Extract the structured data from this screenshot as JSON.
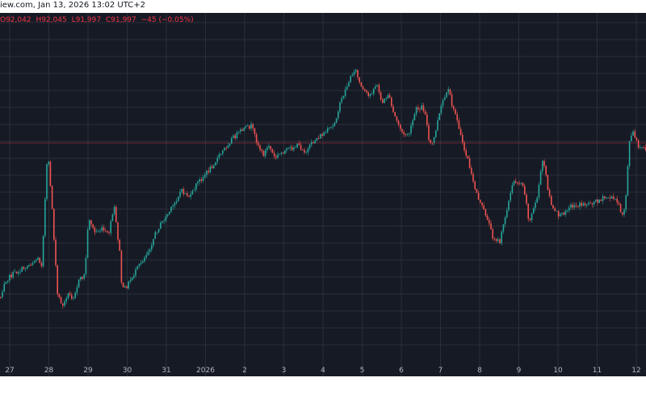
{
  "header": {
    "source_date": "iew.com,  Jan 13, 2026 13:02 UTC+2"
  },
  "ohlc": {
    "open": "O92,042",
    "high": "H92,045",
    "low": "L91,997",
    "close": "C91,997",
    "change": "−45 (−0.05%)"
  },
  "colors": {
    "background": "#161a25",
    "grid": "#2a2e39",
    "up": "#26a69a",
    "down": "#ef5350",
    "price_line": "#f23645",
    "axis_text": "#b2b5be"
  },
  "chart_data": {
    "type": "candlestick",
    "x_tick_labels": [
      "27",
      "28",
      "29",
      "30",
      "31",
      "2026",
      "2",
      "3",
      "4",
      "5",
      "6",
      "7",
      "8",
      "9",
      "10",
      "11",
      "12"
    ],
    "trend": [
      [
        0.0,
        0.17
      ],
      [
        0.1,
        0.22
      ],
      [
        0.3,
        0.24
      ],
      [
        0.6,
        0.26
      ],
      [
        0.95,
        0.29
      ],
      [
        1.05,
        0.27
      ],
      [
        1.2,
        0.62
      ],
      [
        1.3,
        0.48
      ],
      [
        1.45,
        0.18
      ],
      [
        1.6,
        0.14
      ],
      [
        1.7,
        0.18
      ],
      [
        1.85,
        0.17
      ],
      [
        2.0,
        0.22
      ],
      [
        2.15,
        0.24
      ],
      [
        2.25,
        0.42
      ],
      [
        2.4,
        0.37
      ],
      [
        2.6,
        0.38
      ],
      [
        2.75,
        0.36
      ],
      [
        2.9,
        0.45
      ],
      [
        3.0,
        0.35
      ],
      [
        3.05,
        0.3
      ],
      [
        3.1,
        0.19
      ],
      [
        3.2,
        0.2
      ],
      [
        3.3,
        0.22
      ],
      [
        3.5,
        0.26
      ],
      [
        3.8,
        0.32
      ],
      [
        4.0,
        0.38
      ],
      [
        4.4,
        0.45
      ],
      [
        4.6,
        0.5
      ],
      [
        4.85,
        0.48
      ],
      [
        5.0,
        0.52
      ],
      [
        5.3,
        0.56
      ],
      [
        5.6,
        0.61
      ],
      [
        5.9,
        0.66
      ],
      [
        6.2,
        0.69
      ],
      [
        6.4,
        0.7
      ],
      [
        6.55,
        0.65
      ],
      [
        6.7,
        0.61
      ],
      [
        6.85,
        0.64
      ],
      [
        7.0,
        0.6
      ],
      [
        7.2,
        0.62
      ],
      [
        7.4,
        0.63
      ],
      [
        7.6,
        0.64
      ],
      [
        7.8,
        0.62
      ],
      [
        8.05,
        0.66
      ],
      [
        8.3,
        0.68
      ],
      [
        8.5,
        0.7
      ],
      [
        8.7,
        0.78
      ],
      [
        8.9,
        0.84
      ],
      [
        9.05,
        0.88
      ],
      [
        9.2,
        0.82
      ],
      [
        9.4,
        0.79
      ],
      [
        9.6,
        0.83
      ],
      [
        9.75,
        0.77
      ],
      [
        9.9,
        0.8
      ],
      [
        10.0,
        0.75
      ],
      [
        10.1,
        0.72
      ],
      [
        10.3,
        0.67
      ],
      [
        10.45,
        0.68
      ],
      [
        10.6,
        0.75
      ],
      [
        10.75,
        0.76
      ],
      [
        10.85,
        0.74
      ],
      [
        10.95,
        0.64
      ],
      [
        11.05,
        0.65
      ],
      [
        11.15,
        0.71
      ],
      [
        11.3,
        0.78
      ],
      [
        11.45,
        0.81
      ],
      [
        11.55,
        0.75
      ],
      [
        11.65,
        0.73
      ],
      [
        11.8,
        0.64
      ],
      [
        11.95,
        0.59
      ],
      [
        12.05,
        0.53
      ],
      [
        12.25,
        0.46
      ],
      [
        12.45,
        0.41
      ],
      [
        12.55,
        0.36
      ],
      [
        12.75,
        0.34
      ],
      [
        12.9,
        0.43
      ],
      [
        13.1,
        0.53
      ],
      [
        13.35,
        0.52
      ],
      [
        13.5,
        0.4
      ],
      [
        13.7,
        0.48
      ],
      [
        13.85,
        0.6
      ],
      [
        14.0,
        0.49
      ],
      [
        14.1,
        0.44
      ],
      [
        14.3,
        0.42
      ],
      [
        14.5,
        0.45
      ],
      [
        15.0,
        0.46
      ],
      [
        15.5,
        0.48
      ],
      [
        15.75,
        0.47
      ],
      [
        15.85,
        0.42
      ],
      [
        15.95,
        0.45
      ],
      [
        16.05,
        0.65
      ],
      [
        16.15,
        0.68
      ],
      [
        16.3,
        0.63
      ]
    ]
  }
}
